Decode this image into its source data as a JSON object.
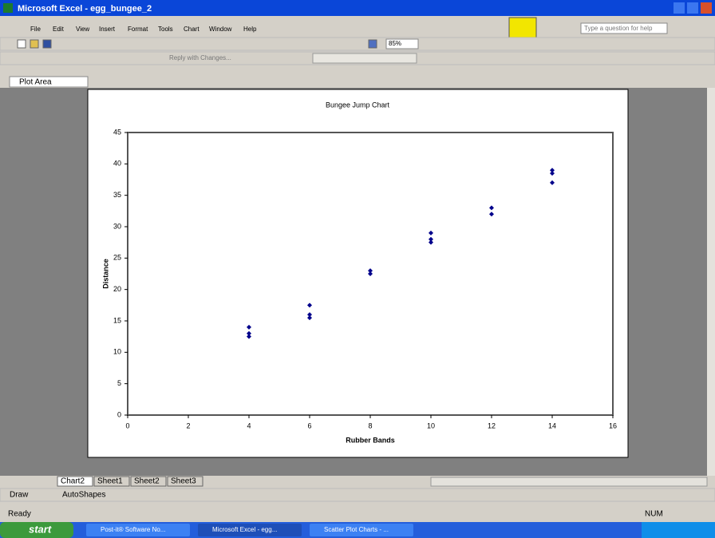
{
  "window": {
    "title": "Microsoft Excel - egg_bungee_2"
  },
  "menu": [
    "File",
    "Edit",
    "View",
    "Insert",
    "Format",
    "Tools",
    "Chart",
    "Window",
    "Help"
  ],
  "toolbar": {
    "help_box": "Type a question for help",
    "zoom": "85%",
    "reply": "Reply with Changes..."
  },
  "name_box": "Plot Area",
  "chart_data": {
    "type": "scatter",
    "title": "Bungee Jump Chart",
    "x_label": "Rubber Bands",
    "y_label": "Distance",
    "series": [
      {
        "color": "#00008b",
        "x": [
          4,
          4,
          4,
          6,
          6,
          6,
          8,
          8,
          10,
          10,
          10,
          12,
          12,
          14,
          14,
          14
        ],
        "values": [
          14,
          13,
          12.5,
          17.5,
          16,
          15.5,
          23,
          22.5,
          29,
          28,
          27.5,
          33,
          32,
          39,
          38.5,
          37
        ]
      }
    ],
    "xlim": [
      0,
      16
    ],
    "xticks": [
      0,
      2,
      4,
      6,
      8,
      10,
      12,
      14,
      16
    ],
    "ylim": [
      0,
      45
    ],
    "yticks": [
      0,
      5,
      10,
      15,
      20,
      25,
      30,
      35,
      40,
      45
    ]
  },
  "sheet_tabs": [
    "Chart2",
    "Sheet1",
    "Sheet2",
    "Sheet3"
  ],
  "drawing_toolbar": {
    "draw": "Draw",
    "autoshapes": "AutoShapes"
  },
  "status": {
    "left": "Ready",
    "right": "NUM"
  },
  "taskbar": {
    "start": "start",
    "buttons": [
      "Post-it® Software No...",
      "Microsoft Excel - egg...",
      "Scatter Plot Charts - ..."
    ]
  }
}
